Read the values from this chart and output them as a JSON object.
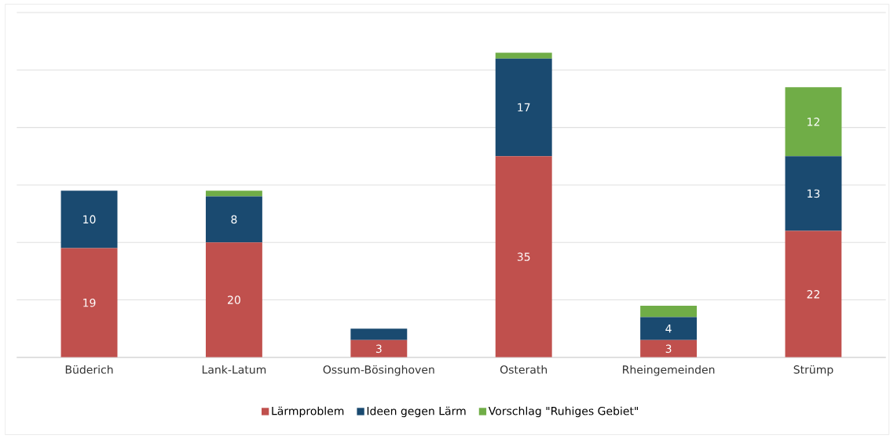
{
  "chart_data": {
    "type": "bar",
    "stacked": true,
    "categories": [
      "Büderich",
      "Lank-Latum",
      "Ossum-Bösinghoven",
      "Osterath",
      "Rheingemeinden",
      "Strümp"
    ],
    "series": [
      {
        "name": "Lärmproblem",
        "color": "#c0504d",
        "values": [
          19,
          20,
          3,
          35,
          3,
          22
        ],
        "value_labels": [
          "19",
          "20",
          "3",
          "35",
          "3",
          "22"
        ]
      },
      {
        "name": "Ideen gegen Lärm",
        "color": "#1a4a70",
        "values": [
          10,
          8,
          2,
          17,
          4,
          13
        ],
        "value_labels": [
          "10",
          "8",
          null,
          "17",
          "4",
          "13"
        ]
      },
      {
        "name": "Vorschlag \"Ruhiges Gebiet\"",
        "color": "#70ad47",
        "values": [
          0,
          1,
          0,
          1,
          2,
          12
        ],
        "value_labels": [
          null,
          null,
          null,
          null,
          null,
          "12"
        ]
      }
    ],
    "ylim": [
      0,
      60
    ],
    "yticks": [
      {
        "value": 0,
        "label": null
      },
      {
        "value": 10,
        "label": null
      },
      {
        "value": 20,
        "label": null
      },
      {
        "value": 30,
        "label": null
      },
      {
        "value": 40,
        "label": null
      },
      {
        "value": 50,
        "label": null
      },
      {
        "value": 60,
        "label": null
      }
    ],
    "tick_labels": "x",
    "grid": "y",
    "legend": "bottom"
  }
}
